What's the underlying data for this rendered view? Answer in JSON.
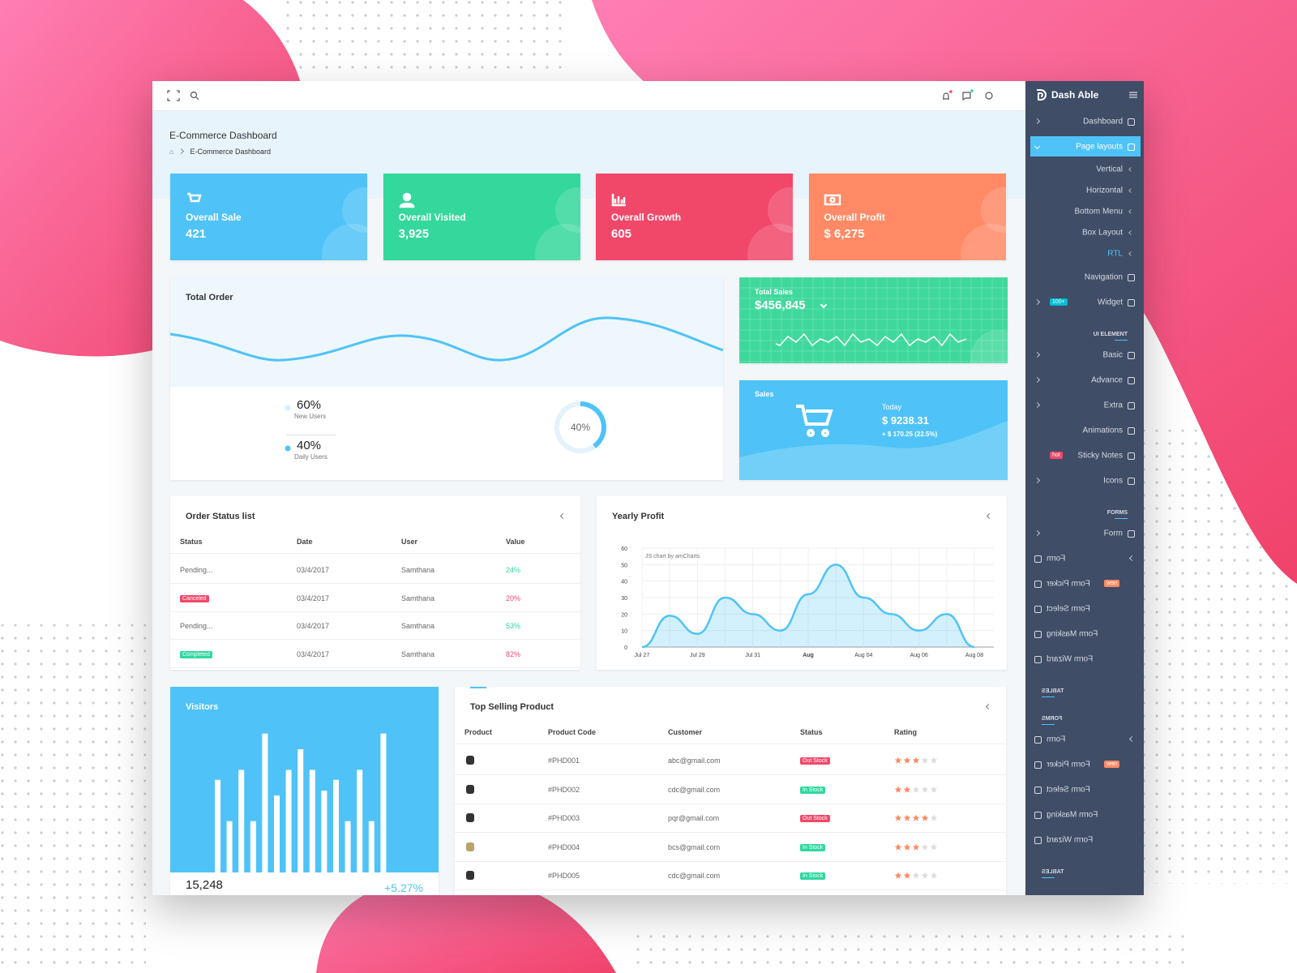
{
  "header": {
    "title": "E-Commerce Dashboard",
    "breadcrumb": "E-Commerce Dashboard"
  },
  "stat_cards": [
    {
      "label": "Overall Sale",
      "value": "421",
      "color": "#4fc3f7"
    },
    {
      "label": "Overall Visited",
      "value": "3,925",
      "color": "#34d89c"
    },
    {
      "label": "Overall Growth",
      "value": "605",
      "color": "#f1486a"
    },
    {
      "label": "Overall Profit",
      "value": "$ 6,275",
      "color": "#ff8a65"
    }
  ],
  "total_order": {
    "title": "Total Order",
    "stats": [
      {
        "value": "60%",
        "label": "New Users",
        "color": "#d6eefc"
      },
      {
        "value": "40%",
        "label": "Daily Users",
        "color": "#4fc3f7"
      }
    ],
    "donut": {
      "value": 40,
      "label": "40%",
      "color": "#4fc3f7"
    }
  },
  "total_sales": {
    "title": "Total Sales",
    "value": "$456,845",
    "color": "#3fd89b"
  },
  "sales": {
    "title": "Sales",
    "period": "Today",
    "value": "$ 9238.31",
    "change": "+ $ 170.25 (22.5%)",
    "color": "#4fc3f7"
  },
  "order_status": {
    "title": "Order Status list",
    "columns": [
      "Status",
      "Date",
      "User",
      "Value"
    ],
    "rows": [
      {
        "status": "Pending...",
        "date": "03/4/2017",
        "user": "Samthana",
        "value": "24%",
        "value_color": "#2ed8a0"
      },
      {
        "status": "Canceled",
        "status_color": "#f1486a",
        "date": "03/4/2017",
        "user": "Samthana",
        "value": "20%",
        "value_color": "#f1486a"
      },
      {
        "status": "Pending...",
        "date": "03/4/2017",
        "user": "Samthana",
        "value": "53%",
        "value_color": "#2ed8a0"
      },
      {
        "status": "Completed",
        "status_color": "#2ed8a0",
        "date": "03/4/2017",
        "user": "Samthana",
        "value": "82%",
        "value_color": "#f1486a"
      }
    ]
  },
  "yearly_profit": {
    "title": "Yearly Profit",
    "credit": "JS chart by amCharts",
    "type": "area",
    "categories": [
      "Jul 27",
      null,
      "Jul 29",
      null,
      "Jul 31",
      null,
      "Aug",
      null,
      "Aug 04",
      null,
      "Aug 06",
      null,
      "Aug 08"
    ],
    "values": [
      0,
      19,
      8,
      30,
      20,
      10,
      32,
      50,
      30,
      20,
      10,
      20,
      0
    ],
    "color": "#4fc3f7",
    "ylim": [
      0,
      60
    ],
    "yticks": [
      0,
      10,
      20,
      30,
      40,
      50,
      60
    ],
    "grid": true
  },
  "visitors": {
    "title": "Visitors",
    "values": [
      112,
      62,
      124,
      62,
      168,
      93,
      124,
      149,
      124,
      99,
      112,
      62,
      124,
      62,
      168
    ],
    "total": "15,248",
    "change": "+5.27%",
    "color": "#4fc3f7"
  },
  "top_selling": {
    "title": "Top Selling Product",
    "columns": [
      "Product",
      "Product Code",
      "Customer",
      "Status",
      "Rating"
    ],
    "rows": [
      {
        "code": "#PHD001",
        "customer": "abc@gmail.com",
        "status": "Out Stock",
        "status_color": "#f1486a",
        "rating": 3
      },
      {
        "code": "#PHD002",
        "customer": "cdc@gmail.com",
        "status": "In Stock",
        "status_color": "#2ed8a0",
        "rating": 2
      },
      {
        "code": "#PHD003",
        "customer": "pqr@gmail.com",
        "status": "Out Stock",
        "status_color": "#f1486a",
        "rating": 4
      },
      {
        "code": "#PHD004",
        "customer": "bcs@gmail.com",
        "status": "In Stock",
        "status_color": "#2ed8a0",
        "rating": 3
      },
      {
        "code": "#PHD005",
        "customer": "cdc@gmail.com",
        "status": "In Stock",
        "status_color": "#2ed8a0",
        "rating": 2
      }
    ]
  },
  "sidebar": {
    "brand": "Dash Able",
    "items": [
      {
        "label": "Dashboard",
        "kind": "item",
        "submenu": true
      },
      {
        "label": "Page layouts",
        "kind": "item",
        "active": true
      },
      {
        "label": "Vertical",
        "kind": "sub"
      },
      {
        "label": "Horizontal",
        "kind": "sub"
      },
      {
        "label": "Bottom Menu",
        "kind": "sub"
      },
      {
        "label": "Box Layout",
        "kind": "sub"
      },
      {
        "label": "RTL",
        "kind": "sub",
        "color": "#4fc3f7"
      },
      {
        "label": "Navigation",
        "kind": "item"
      },
      {
        "label": "Widget",
        "kind": "item",
        "submenu": true,
        "badge": "100+",
        "badge_color": "#00bcd4"
      },
      {
        "label": "UI ELEMENT",
        "kind": "heading"
      },
      {
        "label": "Basic",
        "kind": "item",
        "submenu": true
      },
      {
        "label": "Advance",
        "kind": "item",
        "submenu": true
      },
      {
        "label": "Extra",
        "kind": "item",
        "submenu": true
      },
      {
        "label": "Animations",
        "kind": "item"
      },
      {
        "label": "Sticky Notes",
        "kind": "item",
        "badge": "hot",
        "badge_color": "#f1486a"
      },
      {
        "label": "Icons",
        "kind": "item",
        "submenu": true
      },
      {
        "label": "FORMS",
        "kind": "heading"
      },
      {
        "label": "Form",
        "kind": "item",
        "submenu": true
      },
      {
        "label": "Form",
        "kind": "item",
        "submenu": true,
        "mirrored": true
      },
      {
        "label": "Form Picker",
        "kind": "item",
        "badge": "new",
        "badge_color": "#ff8a65",
        "mirrored": true
      },
      {
        "label": "Form Select",
        "kind": "item",
        "mirrored": true
      },
      {
        "label": "Form Masking",
        "kind": "item",
        "mirrored": true
      },
      {
        "label": "Form Wizard",
        "kind": "item",
        "mirrored": true
      },
      {
        "label": "TABLES",
        "kind": "heading",
        "mirrored": true
      },
      {
        "label": "FORMS",
        "kind": "heading",
        "mirrored": true
      },
      {
        "label": "Form",
        "kind": "item",
        "submenu": true,
        "mirrored": true
      },
      {
        "label": "Form Picker",
        "kind": "item",
        "badge": "new",
        "badge_color": "#ff8a65",
        "mirrored": true
      },
      {
        "label": "Form Select",
        "kind": "item",
        "mirrored": true
      },
      {
        "label": "Form Masking",
        "kind": "item",
        "mirrored": true
      },
      {
        "label": "Form Wizard",
        "kind": "item",
        "mirrored": true
      },
      {
        "label": "TABLES",
        "kind": "heading",
        "mirrored": true
      }
    ]
  }
}
